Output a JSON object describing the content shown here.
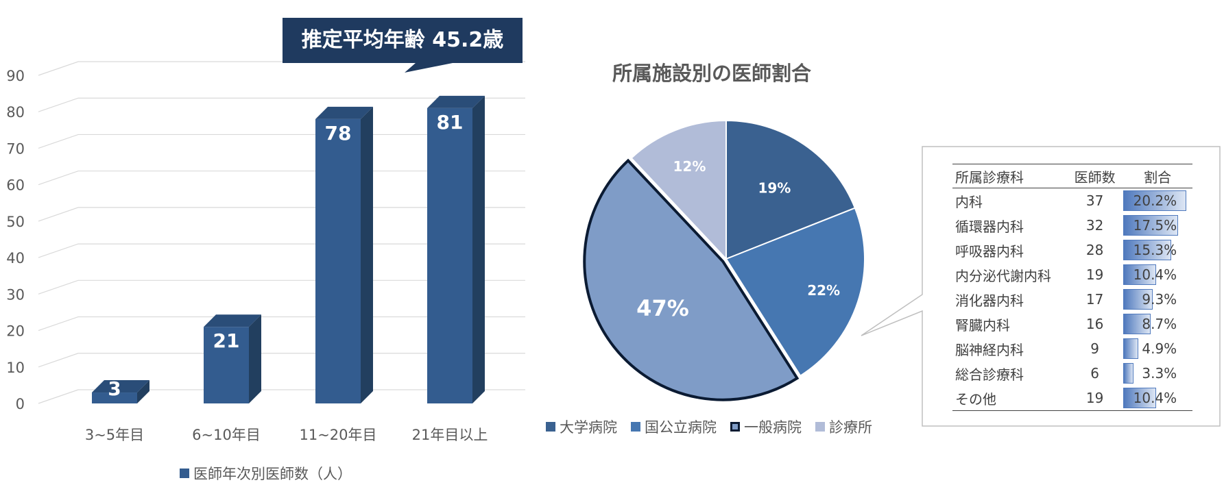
{
  "chart_data": [
    {
      "type": "bar",
      "categories": [
        "3~5年目",
        "6~10年目",
        "11~20年目",
        "21年目以上"
      ],
      "series": [
        {
          "name": "医師年次別医師数（人）",
          "values": [
            3,
            21,
            78,
            81
          ]
        }
      ],
      "ylim": [
        0,
        90
      ],
      "yticks": [
        0,
        10,
        20,
        30,
        40,
        50,
        60,
        70,
        80,
        90
      ],
      "grid": true,
      "legend": "bottom",
      "annotation": "推定平均年齢 45.2歳",
      "colors": {
        "bar": "#335c8f",
        "side": "#223f5f",
        "callout": "#1f3a5f"
      }
    },
    {
      "type": "pie",
      "title": "所属施設別の医師割合",
      "labels": [
        "大学病院",
        "国公立病院",
        "一般病院",
        "診療所"
      ],
      "values": [
        19,
        22,
        47,
        12
      ],
      "data_labels": [
        "19%",
        "22%",
        "47%",
        "12%"
      ],
      "colors": [
        "#3a6190",
        "#4677b1",
        "#7f9cc7",
        "#b1bcd8"
      ],
      "legend": "bottom"
    },
    {
      "type": "table",
      "columns": [
        "所属診療科",
        "医師数",
        "割合"
      ],
      "rows": [
        {
          "name": "内科",
          "count": 37,
          "pct": 20.2,
          "label": "20.2%"
        },
        {
          "name": "循環器内科",
          "count": 32,
          "pct": 17.5,
          "label": "17.5%"
        },
        {
          "name": "呼吸器内科",
          "count": 28,
          "pct": 15.3,
          "label": "15.3%"
        },
        {
          "name": "内分泌代謝内科",
          "count": 19,
          "pct": 10.4,
          "label": "10.4%"
        },
        {
          "name": "消化器内科",
          "count": 17,
          "pct": 9.3,
          "label": "9.3%"
        },
        {
          "name": "腎臓内科",
          "count": 16,
          "pct": 8.7,
          "label": "8.7%"
        },
        {
          "name": "脳神経内科",
          "count": 9,
          "pct": 4.9,
          "label": "4.9%"
        },
        {
          "name": "総合診療科",
          "count": 6,
          "pct": 3.3,
          "label": "3.3%"
        },
        {
          "name": "その他",
          "count": 19,
          "pct": 10.4,
          "label": "10.4%"
        }
      ]
    }
  ]
}
